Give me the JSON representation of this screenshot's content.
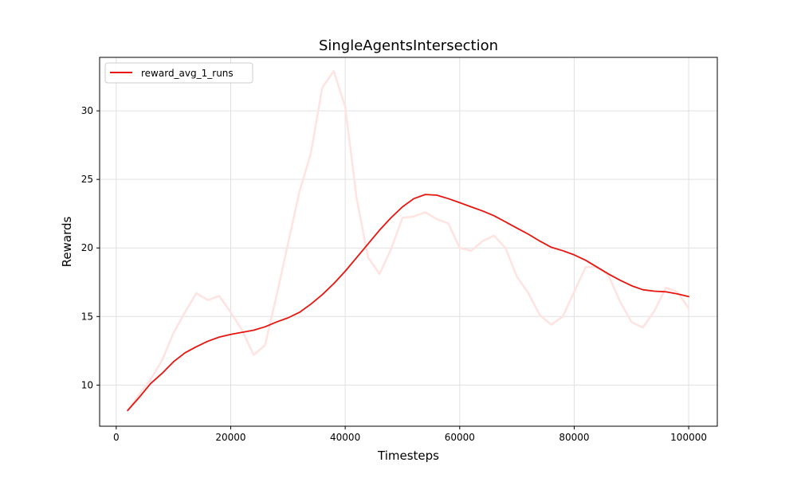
{
  "chart_data": {
    "type": "line",
    "title": "SingleAgentsIntersection",
    "xlabel": "Timesteps",
    "ylabel": "Rewards",
    "xlim": [
      -2900,
      105000
    ],
    "ylim": [
      7.0,
      33.9
    ],
    "xticks": [
      0,
      20000,
      40000,
      60000,
      80000,
      100000
    ],
    "yticks": [
      10,
      15,
      20,
      25,
      30
    ],
    "grid": true,
    "legend": {
      "placement": "top-left",
      "entries": [
        "reward_avg_1_runs"
      ]
    },
    "colors": {
      "series": "#e8150f",
      "raw": "#ffe3e1",
      "grid": "#e0e0e0"
    },
    "series": [
      {
        "name": "reward_avg_1_runs",
        "style": "smoothed",
        "x": [
          2000,
          4000,
          6000,
          8000,
          10000,
          12000,
          14000,
          16000,
          18000,
          20000,
          22000,
          24000,
          26000,
          28000,
          30000,
          32000,
          34000,
          36000,
          38000,
          40000,
          42000,
          44000,
          46000,
          48000,
          50000,
          52000,
          54000,
          56000,
          58000,
          60000,
          62000,
          64000,
          66000,
          68000,
          70000,
          72000,
          74000,
          76000,
          78000,
          80000,
          82000,
          84000,
          86000,
          88000,
          90000,
          92000,
          94000,
          96000,
          98000,
          100000
        ],
        "y": [
          8.15,
          9.1,
          10.1,
          10.85,
          11.7,
          12.35,
          12.8,
          13.2,
          13.5,
          13.7,
          13.85,
          14.0,
          14.25,
          14.6,
          14.9,
          15.3,
          15.9,
          16.6,
          17.4,
          18.3,
          19.3,
          20.3,
          21.3,
          22.2,
          23.0,
          23.6,
          23.9,
          23.85,
          23.6,
          23.3,
          23.0,
          22.7,
          22.35,
          21.9,
          21.45,
          21.0,
          20.5,
          20.05,
          19.8,
          19.5,
          19.1,
          18.6,
          18.1,
          17.65,
          17.25,
          16.95,
          16.85,
          16.8,
          16.65,
          16.45
        ]
      },
      {
        "style": "raw",
        "x": [
          2000,
          4000,
          6000,
          8000,
          10000,
          12000,
          14000,
          16000,
          18000,
          20000,
          22000,
          24000,
          26000,
          28000,
          30000,
          32000,
          34000,
          36000,
          38000,
          40000,
          42000,
          44000,
          46000,
          48000,
          50000,
          52000,
          54000,
          56000,
          58000,
          60000,
          62000,
          64000,
          66000,
          68000,
          70000,
          72000,
          74000,
          76000,
          78000,
          80000,
          82000,
          84000,
          86000,
          88000,
          90000,
          92000,
          94000,
          96000,
          98000,
          100000
        ],
        "y": [
          8.15,
          9.3,
          10.4,
          11.8,
          13.8,
          15.3,
          16.7,
          16.2,
          16.5,
          15.3,
          14.0,
          12.2,
          12.9,
          16.5,
          20.3,
          24.1,
          26.9,
          31.7,
          32.9,
          30.3,
          23.6,
          19.3,
          18.1,
          19.9,
          22.2,
          22.3,
          22.6,
          22.1,
          21.8,
          20.0,
          19.8,
          20.5,
          20.9,
          20.0,
          17.9,
          16.7,
          15.1,
          14.4,
          15.0,
          16.8,
          18.6,
          18.6,
          18.0,
          16.1,
          14.6,
          14.2,
          15.4,
          17.1,
          16.8,
          15.6
        ]
      }
    ]
  }
}
